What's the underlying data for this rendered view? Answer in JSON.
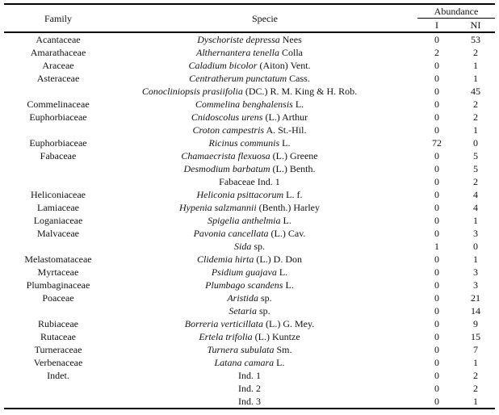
{
  "colors": {
    "background": "#ffffff",
    "text": "#111111",
    "rule": "#000000"
  },
  "table": {
    "headers": {
      "family": "Family",
      "specie": "Specie",
      "abundance": "Abundance",
      "i": "I",
      "ni": "NI"
    },
    "rows": [
      {
        "family": "Acantaceae",
        "sci": "Dyschoriste depressa",
        "auth": "Nees",
        "i": "0",
        "ni": "53"
      },
      {
        "family": "Amarathaceae",
        "sci": "Althernantera tenella",
        "auth": "Colla",
        "i": "2",
        "ni": "2"
      },
      {
        "family": "Araceae",
        "sci": "Caladium bicolor",
        "auth": "(Aiton) Vent.",
        "i": "0",
        "ni": "1"
      },
      {
        "family": "Asteraceae",
        "sci": "Centratherum punctatum",
        "auth": "Cass.",
        "i": "0",
        "ni": "1"
      },
      {
        "family": "",
        "sci": "Conocliniopsis prasiifolia",
        "auth": "(DC.) R. M. King & H. Rob.",
        "i": "0",
        "ni": "45"
      },
      {
        "family": "Commelinaceae",
        "sci": "Commelina benghalensis",
        "auth": "L.",
        "i": "0",
        "ni": "2"
      },
      {
        "family": "Euphorbiaceae",
        "sci": "Cnidoscolus urens",
        "auth": "(L.) Arthur",
        "i": "0",
        "ni": "2"
      },
      {
        "family": "",
        "sci": "Croton campestris",
        "auth": "A. St.-Hil.",
        "i": "0",
        "ni": "1"
      },
      {
        "family": "Euphorbiaceae",
        "sci": "Ricinus communis",
        "auth": "L.",
        "i": "72",
        "ni": "0"
      },
      {
        "family": "Fabaceae",
        "sci": "Chamaecrista flexuosa",
        "auth": "(L.) Greene",
        "i": "0",
        "ni": "5"
      },
      {
        "family": "",
        "sci": "Desmodium barbatum",
        "auth": "(L.) Benth.",
        "i": "0",
        "ni": "5"
      },
      {
        "family": "",
        "sci": "",
        "auth": "Fabaceae Ind. 1",
        "i": "0",
        "ni": "2"
      },
      {
        "family": "Heliconiaceae",
        "sci": "Heliconia psittacorum",
        "auth": "L. f.",
        "i": "0",
        "ni": "4"
      },
      {
        "family": "Lamiaceae",
        "sci": "Hypenia salzmannii",
        "auth": "(Benth.) Harley",
        "i": "0",
        "ni": "4"
      },
      {
        "family": "Loganiaceae",
        "sci": "Spigelia anthelmia",
        "auth": "L.",
        "i": "0",
        "ni": "1"
      },
      {
        "family": "Malvaceae",
        "sci": "Pavonia cancellata",
        "auth": "(L.) Cav.",
        "i": "0",
        "ni": "3"
      },
      {
        "family": "",
        "sci": "Sida",
        "auth": "sp.",
        "i": "1",
        "ni": "0"
      },
      {
        "family": "Melastomataceae",
        "sci": "Clidemia hirta",
        "auth": "(L.) D. Don",
        "i": "0",
        "ni": "1"
      },
      {
        "family": "Myrtaceae",
        "sci": "Psidium guajava",
        "auth": "L.",
        "i": "0",
        "ni": "3"
      },
      {
        "family": "Plumbaginaceae",
        "sci": "Plumbago scandens",
        "auth": "L.",
        "i": "0",
        "ni": "3"
      },
      {
        "family": "Poaceae",
        "sci": "Aristida",
        "auth": "sp.",
        "i": "0",
        "ni": "21"
      },
      {
        "family": "",
        "sci": "Setaria",
        "auth": "sp.",
        "i": "0",
        "ni": "14"
      },
      {
        "family": "Rubiaceae",
        "sci": "Borreria verticillata",
        "auth": "(L.) G. Mey.",
        "i": "0",
        "ni": "9"
      },
      {
        "family": "Rutaceae",
        "sci": "Ertela trifolia",
        "auth": "(L.) Kuntze",
        "i": "0",
        "ni": "15"
      },
      {
        "family": "Turneraceae",
        "sci": "Turnera subulata",
        "auth": "Sm.",
        "i": "0",
        "ni": "7"
      },
      {
        "family": "Verbenaceae",
        "sci": "Latana camara",
        "auth": "L.",
        "i": "0",
        "ni": "1"
      },
      {
        "family": "Indet.",
        "sci": "",
        "auth": "Ind. 1",
        "i": "0",
        "ni": "2"
      },
      {
        "family": "",
        "sci": "",
        "auth": "Ind. 2",
        "i": "0",
        "ni": "2"
      },
      {
        "family": "",
        "sci": "",
        "auth": "Ind. 3",
        "i": "0",
        "ni": "1"
      }
    ]
  }
}
